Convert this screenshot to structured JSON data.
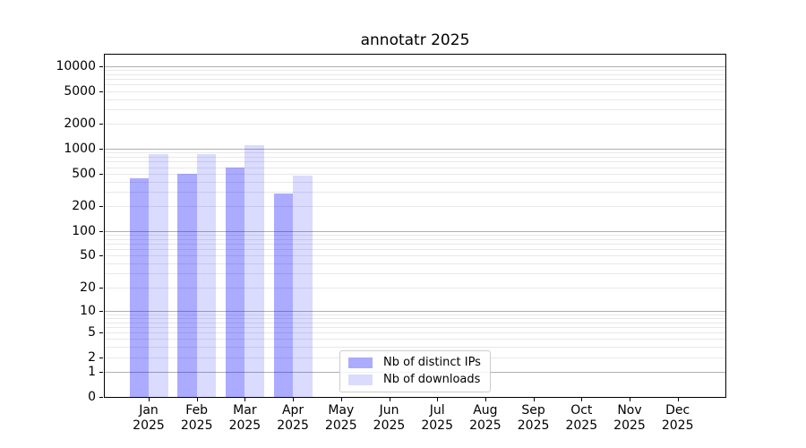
{
  "figure": {
    "title": "annotatr 2025"
  },
  "colors": {
    "bar_distinct_ips": "rgba(0,0,255,0.33)",
    "bar_downloads": "rgba(0,0,255,0.14)",
    "bar_distinct_ips_hex": "#aaaaff",
    "bar_downloads_hex": "#dcdcff",
    "grid_major": "#b0b0b0",
    "grid_minor": "#e8e8e8",
    "axis": "#000000",
    "legend_border": "#cccccc",
    "text": "#000000"
  },
  "legend": {
    "items": [
      {
        "label": "Nb of distinct IPs",
        "color": "rgba(0,0,255,0.33)"
      },
      {
        "label": "Nb of downloads",
        "color": "rgba(0,0,255,0.14)"
      }
    ]
  },
  "chart_data": {
    "type": "bar",
    "title": "annotatr 2025",
    "xlabel": "",
    "ylabel": "",
    "yscale": "log1p",
    "ylim": [
      0,
      14000
    ],
    "grid": "horizontal major+minor",
    "legend_position": "lower center",
    "yticks": [
      0,
      1,
      2,
      5,
      10,
      20,
      50,
      100,
      200,
      500,
      1000,
      2000,
      5000,
      10000
    ],
    "categories": [
      "Jan 2025",
      "Feb 2025",
      "Mar 2025",
      "Apr 2025",
      "May 2025",
      "Jun 2025",
      "Jul 2025",
      "Aug 2025",
      "Sep 2025",
      "Oct 2025",
      "Nov 2025",
      "Dec 2025"
    ],
    "series": [
      {
        "name": "Nb of distinct IPs",
        "values": [
          440,
          500,
          590,
          290,
          0,
          0,
          0,
          0,
          0,
          0,
          0,
          0
        ]
      },
      {
        "name": "Nb of downloads",
        "values": [
          860,
          870,
          1100,
          470,
          0,
          0,
          0,
          0,
          0,
          0,
          0,
          0
        ]
      }
    ]
  }
}
